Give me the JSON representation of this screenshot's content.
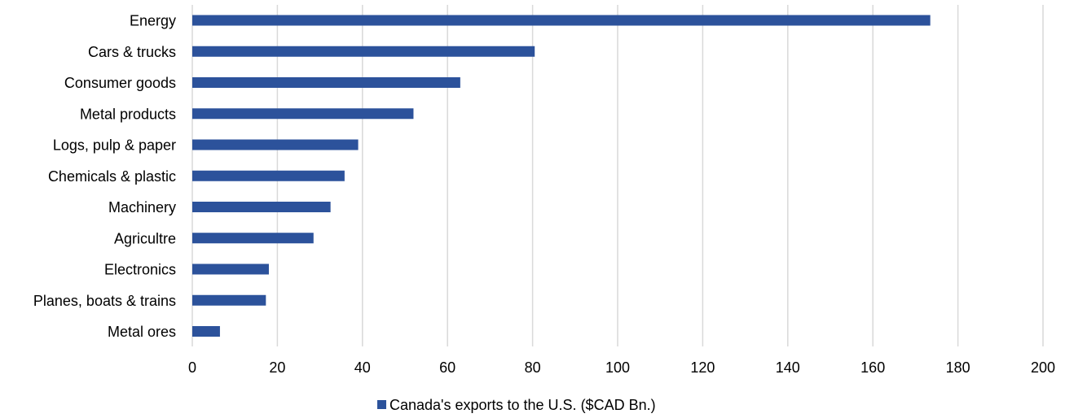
{
  "chart_data": {
    "type": "bar",
    "orientation": "horizontal",
    "categories": [
      "Energy",
      "Cars & trucks",
      "Consumer goods",
      "Metal products",
      "Logs, pulp & paper",
      "Chemicals & plastic",
      "Machinery",
      "Agricultre",
      "Electronics",
      "Planes, boats & trains",
      "Metal ores"
    ],
    "series": [
      {
        "name": "Canada's exports to the U.S. ($CAD Bn.)",
        "values": [
          173.5,
          80.5,
          63,
          52,
          39,
          35.8,
          32.5,
          28.5,
          18,
          17.3,
          6.5
        ]
      }
    ],
    "xlim": [
      0,
      200
    ],
    "xticks": [
      "0",
      "20",
      "40",
      "60",
      "80",
      "100",
      "120",
      "140",
      "160",
      "180",
      "200"
    ],
    "grid": "vertical",
    "legend": "bottom",
    "colors": {
      "bar": "#2c529b",
      "grid": "#d9d9d9",
      "text": "#000000"
    }
  }
}
